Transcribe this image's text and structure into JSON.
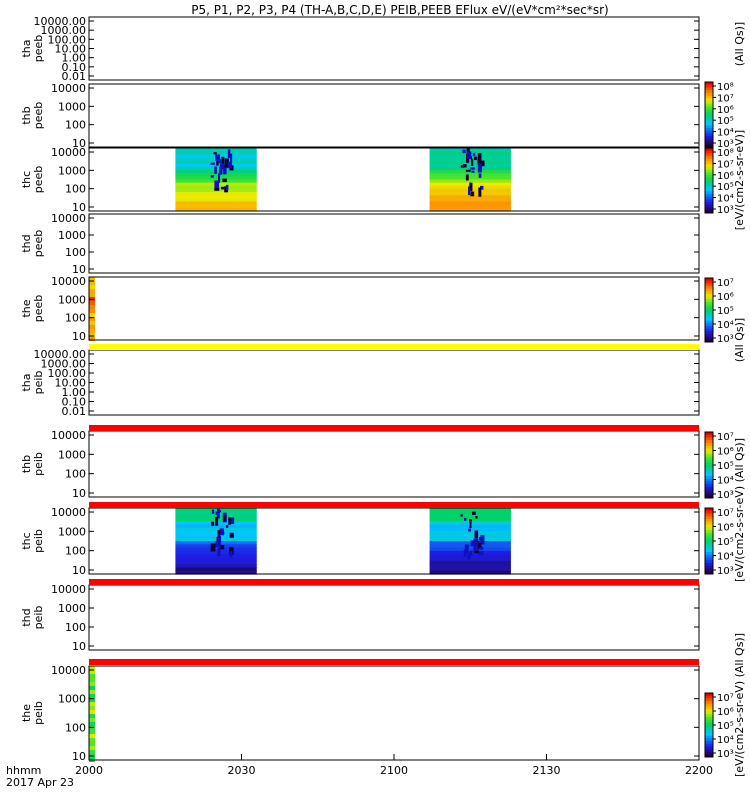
{
  "chart_data": {
    "type": "heatmap",
    "title": "P5, P1, P2, P3, P4 (TH-A,B,C,D,E) PEIB,PEEB EFlux eV/(eV*cm²*sec*sr)",
    "x_axis": {
      "range": [
        "2000",
        "2200"
      ],
      "ticks": [
        "2000",
        "2030",
        "2100",
        "2130",
        "2200"
      ],
      "unit_label": "hhmm",
      "date_label": "2017 Apr 23"
    },
    "panels": [
      {
        "probe": "tha",
        "species": "peeb",
        "y_ticks": [
          "10000.00",
          "1000.00",
          "100.00",
          "10.00",
          "1.00",
          "0.10",
          "0.01"
        ],
        "blocks": []
      },
      {
        "probe": "thb",
        "species": "peeb",
        "y_ticks": [
          "10000",
          "1000",
          "100",
          "10"
        ],
        "blocks": []
      },
      {
        "probe": "thc",
        "species": "peeb",
        "y_ticks": [
          "10000",
          "1000",
          "100",
          "10"
        ],
        "blocks": [
          {
            "start": "2017",
            "end": "2033",
            "profile": "electron"
          },
          {
            "start": "2107",
            "end": "2123",
            "profile": "electron"
          }
        ]
      },
      {
        "probe": "thd",
        "species": "peeb",
        "y_ticks": [
          "10000",
          "1000",
          "100",
          "10"
        ],
        "blocks": []
      },
      {
        "probe": "the",
        "species": "peeb",
        "y_ticks": [
          "10000",
          "1000",
          "100",
          "10"
        ],
        "blocks": [],
        "edge": "warm"
      },
      {
        "probe": "tha",
        "species": "peib",
        "y_ticks": [
          "10000.00",
          "1000.00",
          "100.00",
          "10.00",
          "1.00",
          "0.10",
          "0.01"
        ],
        "blocks": []
      },
      {
        "probe": "thb",
        "species": "peib",
        "y_ticks": [
          "10000",
          "1000",
          "100",
          "10"
        ],
        "blocks": []
      },
      {
        "probe": "thc",
        "species": "peib",
        "y_ticks": [
          "10000",
          "1000",
          "100",
          "10"
        ],
        "blocks": [
          {
            "start": "2017",
            "end": "2033",
            "profile": "ion"
          },
          {
            "start": "2107",
            "end": "2123",
            "profile": "ion"
          }
        ]
      },
      {
        "probe": "thd",
        "species": "peib",
        "y_ticks": [
          "10000",
          "1000",
          "100",
          "10"
        ],
        "blocks": []
      },
      {
        "probe": "the",
        "species": "peib",
        "y_ticks": [
          "10000",
          "1000",
          "100",
          "10"
        ],
        "blocks": [],
        "edge": "cool"
      }
    ],
    "colorbars": [
      {
        "ticks": [
          "10⁸",
          "10⁷",
          "10⁶",
          "10⁵",
          "10⁴",
          "10³"
        ]
      },
      {
        "ticks": [
          "10⁸",
          "10⁷",
          "10⁶",
          "10⁵",
          "10⁴",
          "10³"
        ]
      },
      {
        "ticks": [
          "10⁷",
          "10⁶",
          "10⁵",
          "10⁴",
          "10³"
        ]
      },
      {
        "ticks": [
          "10⁷",
          "10⁶",
          "10⁵",
          "10⁴",
          "10³"
        ]
      },
      {
        "ticks": [
          "10⁷",
          "10⁶",
          "10⁵",
          "10⁴",
          "10³"
        ]
      },
      {
        "ticks": [
          "10⁷",
          "10⁶",
          "10⁵",
          "10⁴",
          "10³"
        ]
      }
    ],
    "colorbar_labels": [
      "(All Qs)]",
      "[eV/(cm2-s-sr-eV)]",
      "(All Qs)]",
      "[eV/(cm2-s-sr-eV) (All Qs)]",
      "[eV/(cm2-s-sr-eV) (All Qs)]"
    ],
    "status_bars": [
      "yellow",
      "red",
      "red",
      "red",
      "red"
    ],
    "colors": {
      "yellow": "#ffff00",
      "red": "#ff0000",
      "axis": "#000000"
    },
    "grid": false,
    "scale": "log"
  }
}
